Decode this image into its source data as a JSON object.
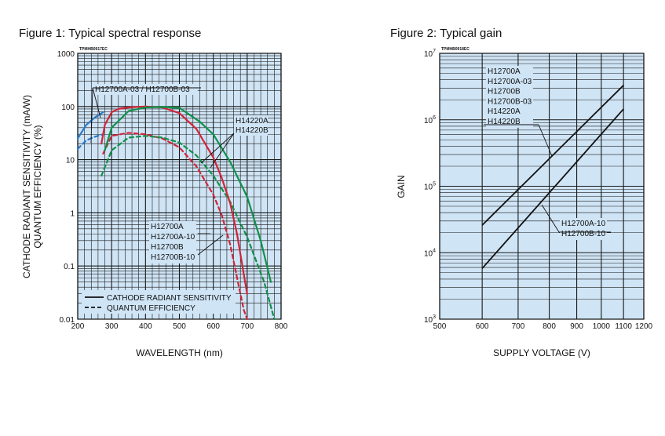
{
  "chart_data": [
    {
      "type": "line",
      "title": "Figure 1: Typical spectral response",
      "code": "TPMHB0917EC",
      "xlabel": "WAVELENGTH (nm)",
      "ylabel": [
        "CATHODE RADIANT SENSITIVITY (mA/W)",
        "QUANTUM EFFICIENCY (%)"
      ],
      "xlim": [
        200,
        800
      ],
      "ylim": [
        0.01,
        1000
      ],
      "yscale": "log",
      "grid": true,
      "xticks": [
        "200",
        "300",
        "400",
        "500",
        "600",
        "700",
        "800"
      ],
      "yticks": [
        "0.01",
        "0.1",
        "1",
        "10",
        "100",
        "1000"
      ],
      "legend": [
        {
          "label": "CATHODE RADIANT SENSITIVITY",
          "style": "solid"
        },
        {
          "label": "QUANTUM EFFICIENCY",
          "style": "dashed"
        }
      ],
      "annotations": [
        {
          "lines": [
            "H12700A-03 / H12700B-03"
          ]
        },
        {
          "lines": [
            "H14220A",
            "H14220B"
          ]
        },
        {
          "lines": [
            "H12700A",
            "H12700A-10",
            "H12700B",
            "H12700B-10"
          ]
        }
      ],
      "series": [
        {
          "name": "H12700A-03 / H12700B-03",
          "color": "#2b78c8",
          "style": "solid",
          "x": [
            200,
            225,
            250,
            275
          ],
          "y": [
            25,
            45,
            62,
            78
          ]
        },
        {
          "name": "H12700A-03 / H12700B-03",
          "color": "#2b78c8",
          "style": "dashed",
          "x": [
            200,
            225,
            250,
            275
          ],
          "y": [
            16,
            23,
            27,
            30
          ]
        },
        {
          "name": "H12700A",
          "color": "#d0253a",
          "style": "solid",
          "x": [
            270,
            280,
            300,
            320,
            350,
            400,
            450,
            500,
            550,
            600,
            625,
            650,
            670,
            690,
            700
          ],
          "y": [
            20,
            45,
            78,
            90,
            96,
            100,
            96,
            75,
            38,
            11,
            4.5,
            1.5,
            0.4,
            0.07,
            0.03
          ]
        },
        {
          "name": "H12700A",
          "color": "#d0253a",
          "style": "dashed",
          "x": [
            275,
            300,
            350,
            400,
            450,
            500,
            550,
            600,
            625,
            650,
            670,
            690,
            700
          ],
          "y": [
            13,
            28,
            32,
            30,
            25,
            17,
            7.5,
            2.2,
            0.9,
            0.25,
            0.06,
            0.015,
            0.01
          ]
        },
        {
          "name": "H14220A",
          "color": "#11904a",
          "style": "solid",
          "x": [
            280,
            300,
            350,
            400,
            450,
            500,
            530,
            560,
            600,
            650,
            700,
            740,
            770
          ],
          "y": [
            15,
            40,
            82,
            96,
            98,
            94,
            70,
            52,
            30,
            9,
            2,
            0.3,
            0.05
          ]
        },
        {
          "name": "H14220A",
          "color": "#11904a",
          "style": "dashed",
          "x": [
            270,
            300,
            350,
            400,
            450,
            500,
            550,
            600,
            650,
            700,
            750,
            780
          ],
          "y": [
            5,
            15,
            26,
            28,
            26,
            21,
            12,
            5,
            1.6,
            0.35,
            0.05,
            0.01
          ]
        }
      ]
    },
    {
      "type": "line",
      "title": "Figure 2: Typical gain",
      "code": "TPMHB0918EC",
      "xlabel": "SUPPLY VOLTAGE (V)",
      "ylabel": "GAIN",
      "xlim": [
        500,
        1200
      ],
      "xscale": "log",
      "ylim": [
        1000,
        10000000
      ],
      "yscale": "log",
      "grid": true,
      "xticks": [
        "500",
        "600",
        "700",
        "800",
        "900",
        "1000",
        "1100",
        "1200"
      ],
      "yticks": [
        {
          "base": "10",
          "exp": "3"
        },
        {
          "base": "10",
          "exp": "4"
        },
        {
          "base": "10",
          "exp": "5"
        },
        {
          "base": "10",
          "exp": "6"
        },
        {
          "base": "10",
          "exp": "7"
        }
      ],
      "annotations": [
        {
          "lines": [
            "H12700A",
            "H12700A-03",
            "H12700B",
            "H12700B-03",
            "H14220A",
            "H14220B"
          ]
        },
        {
          "lines": [
            "H12700A-10",
            "H12700B-10"
          ]
        }
      ],
      "series": [
        {
          "name": "H12700A",
          "color": "#111111",
          "style": "solid",
          "x": [
            600,
            1100
          ],
          "y": [
            26000,
            3300000
          ]
        },
        {
          "name": "H12700A-10",
          "color": "#111111",
          "style": "solid",
          "x": [
            600,
            1100
          ],
          "y": [
            5800,
            1450000
          ]
        }
      ]
    }
  ]
}
